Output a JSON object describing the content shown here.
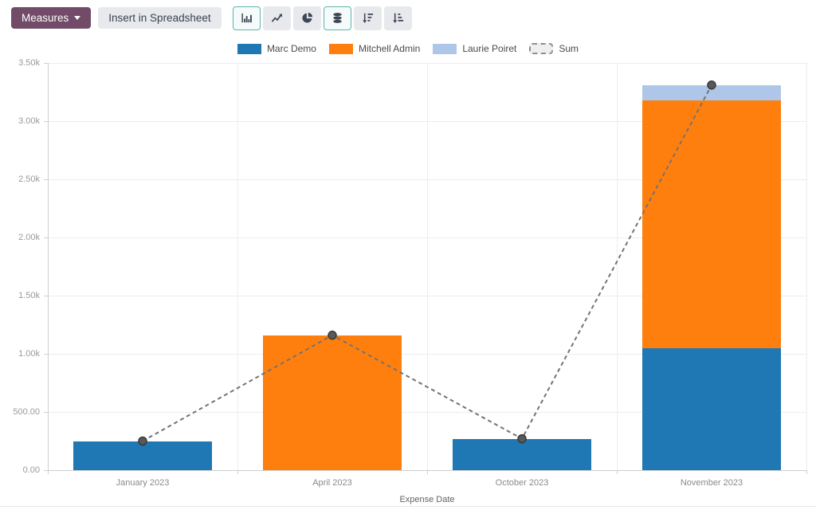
{
  "toolbar": {
    "measures_label": "Measures",
    "insert_spreadsheet_label": "Insert in Spreadsheet",
    "accent_color": "#714B67",
    "active_border_color": "#5fb2ac",
    "chart_type_buttons": [
      {
        "icon": "bar-chart-icon",
        "active": true
      },
      {
        "icon": "line-chart-icon",
        "active": false
      },
      {
        "icon": "pie-chart-icon",
        "active": false
      },
      {
        "icon": "stacked-icon",
        "active": true
      },
      {
        "icon": "sort-descending-icon",
        "active": false
      },
      {
        "icon": "sort-ascending-icon",
        "active": false
      }
    ]
  },
  "chart_data": {
    "type": "bar",
    "stacked": true,
    "title": "",
    "xlabel": "Expense Date",
    "ylabel": "",
    "categories": [
      "January 2023",
      "April 2023",
      "October 2023",
      "November 2023"
    ],
    "series": [
      {
        "name": "Marc Demo",
        "color": "#1f77b4",
        "values": [
          250,
          0,
          270,
          1050
        ]
      },
      {
        "name": "Mitchell Admin",
        "color": "#ff7f0e",
        "values": [
          0,
          1160,
          0,
          2130
        ]
      },
      {
        "name": "Laurie Poiret",
        "color": "#aec7e8",
        "values": [
          0,
          0,
          0,
          130
        ]
      }
    ],
    "line_series": {
      "name": "Sum",
      "color": "#737373",
      "style": "dashed",
      "marker_color": "#595959",
      "values": [
        250,
        1160,
        270,
        3310
      ]
    },
    "ylim": [
      0,
      3500
    ],
    "yticks": {
      "values": [
        0,
        500,
        1000,
        1500,
        2000,
        2500,
        3000,
        3500
      ],
      "labels": [
        "0.00",
        "500.00",
        "1.00k",
        "1.50k",
        "2.00k",
        "2.50k",
        "3.00k",
        "3.50k"
      ]
    },
    "grid": true,
    "legend_position": "top"
  }
}
